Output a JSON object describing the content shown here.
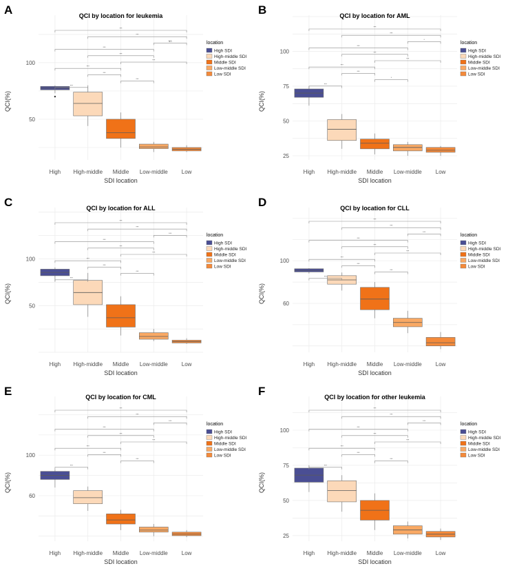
{
  "figure": {
    "panels": [
      "A",
      "B",
      "C",
      "D",
      "E",
      "F"
    ]
  },
  "legend": {
    "title": "location",
    "entries": [
      {
        "label": "High SDI",
        "color": "#4a4e94"
      },
      {
        "label": "High-middle SDI",
        "color": "#fcd9b9"
      },
      {
        "label": "Middle SDI",
        "color": "#f07218"
      },
      {
        "label": "Low-middle SDI",
        "color": "#f9a964"
      },
      {
        "label": "Low SDI",
        "color": "#f48a3a"
      }
    ]
  },
  "chart_data": [
    {
      "panel": "A",
      "type": "box",
      "title": "QCI by location for leukemia",
      "xlabel": "SDI location",
      "ylabel": "QCI(%)",
      "categories": [
        "High",
        "High-middle",
        "Middle",
        "Low-middle",
        "Low"
      ],
      "yticks": [
        50,
        100
      ],
      "ylim": [
        14,
        142
      ],
      "boxes": [
        {
          "category": "High",
          "whisker_low": 73,
          "q1": 76,
          "median": 77.5,
          "q3": 79,
          "whisker_high": 80,
          "outliers": [
            70
          ]
        },
        {
          "category": "High-middle",
          "whisker_low": 44,
          "q1": 53,
          "median": 64,
          "q3": 74,
          "whisker_high": 80,
          "outliers": []
        },
        {
          "category": "Middle",
          "whisker_low": 25,
          "q1": 33,
          "median": 38,
          "q3": 50,
          "whisker_high": 56,
          "outliers": []
        },
        {
          "category": "Low-middle",
          "whisker_low": 21,
          "q1": 24,
          "median": 25.5,
          "q3": 28,
          "whisker_high": 30,
          "outliers": []
        },
        {
          "category": "Low",
          "whisker_low": 21,
          "q1": 22,
          "median": 23.5,
          "q3": 25,
          "whisker_high": 27,
          "outliers": []
        }
      ],
      "significance": [
        {
          "from": "High",
          "to": "High-middle",
          "label": "***"
        },
        {
          "from": "High",
          "to": "Middle",
          "label": "***"
        },
        {
          "from": "High",
          "to": "Low-middle",
          "label": "***"
        },
        {
          "from": "High",
          "to": "Low",
          "label": "***"
        },
        {
          "from": "High-middle",
          "to": "Middle",
          "label": "***"
        },
        {
          "from": "High-middle",
          "to": "Low-middle",
          "label": "***"
        },
        {
          "from": "High-middle",
          "to": "Low",
          "label": "***"
        },
        {
          "from": "Middle",
          "to": "Low-middle",
          "label": "***"
        },
        {
          "from": "Middle",
          "to": "Low",
          "label": "***"
        },
        {
          "from": "Low-middle",
          "to": "Low",
          "label": "NS"
        }
      ]
    },
    {
      "panel": "B",
      "type": "box",
      "title": "QCI by location for AML",
      "xlabel": "SDI location",
      "ylabel": "QCI(%)",
      "categories": [
        "High",
        "High-middle",
        "Middle",
        "Low-middle",
        "Low"
      ],
      "yticks": [
        25,
        50,
        75,
        100
      ],
      "ylim": [
        22,
        126
      ],
      "boxes": [
        {
          "category": "High",
          "whisker_low": 61,
          "q1": 67,
          "median": 70,
          "q3": 73,
          "whisker_high": 75,
          "outliers": []
        },
        {
          "category": "High-middle",
          "whisker_low": 30,
          "q1": 36,
          "median": 44,
          "q3": 51,
          "whisker_high": 55,
          "outliers": []
        },
        {
          "category": "Middle",
          "whisker_low": 26,
          "q1": 30,
          "median": 34,
          "q3": 37,
          "whisker_high": 41,
          "outliers": []
        },
        {
          "category": "Low-middle",
          "whisker_low": 25,
          "q1": 28.5,
          "median": 31,
          "q3": 33,
          "whisker_high": 35,
          "outliers": []
        },
        {
          "category": "Low",
          "whisker_low": 25,
          "q1": 27.5,
          "median": 29,
          "q3": 31,
          "whisker_high": 32,
          "outliers": []
        }
      ],
      "significance": [
        {
          "from": "High",
          "to": "High-middle",
          "label": "***"
        },
        {
          "from": "High",
          "to": "Middle",
          "label": "***"
        },
        {
          "from": "High",
          "to": "Low-middle",
          "label": "***"
        },
        {
          "from": "High",
          "to": "Low",
          "label": "***"
        },
        {
          "from": "High-middle",
          "to": "Middle",
          "label": "***"
        },
        {
          "from": "High-middle",
          "to": "Low-middle",
          "label": "***"
        },
        {
          "from": "High-middle",
          "to": "Low",
          "label": "***"
        },
        {
          "from": "Middle",
          "to": "Low-middle",
          "label": "*"
        },
        {
          "from": "Middle",
          "to": "Low",
          "label": "***"
        },
        {
          "from": "Low-middle",
          "to": "Low",
          "label": "*"
        }
      ]
    },
    {
      "panel": "C",
      "type": "box",
      "title": "QCI by location for ALL",
      "xlabel": "SDI location",
      "ylabel": "QCI(%)",
      "categories": [
        "High",
        "High-middle",
        "Middle",
        "Low-middle",
        "Low"
      ],
      "yticks": [
        50,
        100
      ],
      "ylim": [
        0,
        155
      ],
      "boxes": [
        {
          "category": "High",
          "whisker_low": 76,
          "q1": 82,
          "median": 85.5,
          "q3": 89,
          "whisker_high": 91,
          "outliers": []
        },
        {
          "category": "High-middle",
          "whisker_low": 38,
          "q1": 51,
          "median": 64,
          "q3": 77,
          "whisker_high": 85,
          "outliers": []
        },
        {
          "category": "Middle",
          "whisker_low": 18,
          "q1": 27,
          "median": 37,
          "q3": 51,
          "whisker_high": 60,
          "outliers": []
        },
        {
          "category": "Low-middle",
          "whisker_low": 12,
          "q1": 14,
          "median": 17,
          "q3": 21,
          "whisker_high": 25,
          "outliers": []
        },
        {
          "category": "Low",
          "whisker_low": 9,
          "q1": 10,
          "median": 11.5,
          "q3": 13,
          "whisker_high": 15,
          "outliers": []
        }
      ],
      "significance": [
        {
          "from": "High",
          "to": "High-middle",
          "label": "***"
        },
        {
          "from": "High",
          "to": "Middle",
          "label": "***"
        },
        {
          "from": "High",
          "to": "Low-middle",
          "label": "***"
        },
        {
          "from": "High",
          "to": "Low",
          "label": "***"
        },
        {
          "from": "High-middle",
          "to": "Middle",
          "label": "***"
        },
        {
          "from": "High-middle",
          "to": "Low-middle",
          "label": "***"
        },
        {
          "from": "High-middle",
          "to": "Low",
          "label": "***"
        },
        {
          "from": "Middle",
          "to": "Low-middle",
          "label": "***"
        },
        {
          "from": "Middle",
          "to": "Low",
          "label": "***"
        },
        {
          "from": "Low-middle",
          "to": "Low",
          "label": "***"
        }
      ]
    },
    {
      "panel": "D",
      "type": "box",
      "title": "QCI by location for CLL",
      "xlabel": "SDI location",
      "ylabel": "QCI(%)",
      "categories": [
        "High",
        "High-middle",
        "Middle",
        "Low-middle",
        "Low"
      ],
      "yticks": [
        60,
        100
      ],
      "ylim": [
        14,
        150
      ],
      "boxes": [
        {
          "category": "High",
          "whisker_low": 88,
          "q1": 89.5,
          "median": 91,
          "q3": 92.5,
          "whisker_high": 93,
          "outliers": []
        },
        {
          "category": "High-middle",
          "whisker_low": 72,
          "q1": 78,
          "median": 82,
          "q3": 86,
          "whisker_high": 89,
          "outliers": []
        },
        {
          "category": "Middle",
          "whisker_low": 46,
          "q1": 54,
          "median": 64,
          "q3": 75,
          "whisker_high": 80,
          "outliers": []
        },
        {
          "category": "Low-middle",
          "whisker_low": 32,
          "q1": 38,
          "median": 42,
          "q3": 46,
          "whisker_high": 53,
          "outliers": []
        },
        {
          "category": "Low",
          "whisker_low": 17,
          "q1": 20,
          "median": 23,
          "q3": 28,
          "whisker_high": 33,
          "outliers": []
        }
      ],
      "significance": [
        {
          "from": "High",
          "to": "High-middle",
          "label": "***"
        },
        {
          "from": "High",
          "to": "Middle",
          "label": "***"
        },
        {
          "from": "High",
          "to": "Low-middle",
          "label": "***"
        },
        {
          "from": "High",
          "to": "Low",
          "label": "***"
        },
        {
          "from": "High-middle",
          "to": "Middle",
          "label": "***"
        },
        {
          "from": "High-middle",
          "to": "Low-middle",
          "label": "***"
        },
        {
          "from": "High-middle",
          "to": "Low",
          "label": "***"
        },
        {
          "from": "Middle",
          "to": "Low-middle",
          "label": "***"
        },
        {
          "from": "Middle",
          "to": "Low",
          "label": "***"
        },
        {
          "from": "Low-middle",
          "to": "Low",
          "label": "***"
        }
      ]
    },
    {
      "panel": "E",
      "type": "box",
      "title": "QCI by location for CML",
      "xlabel": "SDI location",
      "ylabel": "QCI(%)",
      "categories": [
        "High",
        "High-middle",
        "Middle",
        "Low-middle",
        "Low"
      ],
      "yticks": [
        60,
        100
      ],
      "ylim": [
        15,
        158
      ],
      "boxes": [
        {
          "category": "High",
          "whisker_low": 68,
          "q1": 76,
          "median": 80,
          "q3": 84,
          "whisker_high": 86,
          "outliers": []
        },
        {
          "category": "High-middle",
          "whisker_low": 45,
          "q1": 52,
          "median": 58,
          "q3": 65,
          "whisker_high": 69,
          "outliers": []
        },
        {
          "category": "Middle",
          "whisker_low": 26,
          "q1": 32,
          "median": 36,
          "q3": 42,
          "whisker_high": 46,
          "outliers": []
        },
        {
          "category": "Low-middle",
          "whisker_low": 20,
          "q1": 24,
          "median": 26,
          "q3": 29,
          "whisker_high": 32,
          "outliers": []
        },
        {
          "category": "Low",
          "whisker_low": 19,
          "q1": 20.5,
          "median": 22,
          "q3": 24,
          "whisker_high": 26,
          "outliers": []
        }
      ],
      "significance": [
        {
          "from": "High",
          "to": "High-middle",
          "label": "***"
        },
        {
          "from": "High",
          "to": "Middle",
          "label": "***"
        },
        {
          "from": "High",
          "to": "Low-middle",
          "label": "***"
        },
        {
          "from": "High",
          "to": "Low",
          "label": "***"
        },
        {
          "from": "High-middle",
          "to": "Middle",
          "label": "***"
        },
        {
          "from": "High-middle",
          "to": "Low-middle",
          "label": "***"
        },
        {
          "from": "High-middle",
          "to": "Low",
          "label": "***"
        },
        {
          "from": "Middle",
          "to": "Low-middle",
          "label": "***"
        },
        {
          "from": "Middle",
          "to": "Low",
          "label": "***"
        },
        {
          "from": "Low-middle",
          "to": "Low",
          "label": "***"
        }
      ]
    },
    {
      "panel": "F",
      "type": "box",
      "title": "QCI by location for other leukemia",
      "xlabel": "SDI location",
      "ylabel": "QCI(%)",
      "categories": [
        "High",
        "High-middle",
        "Middle",
        "Low-middle",
        "Low"
      ],
      "yticks": [
        25,
        50,
        75,
        100
      ],
      "ylim": [
        21,
        124
      ],
      "boxes": [
        {
          "category": "High",
          "whisker_low": 56,
          "q1": 63,
          "median": 68,
          "q3": 73,
          "whisker_high": 75,
          "outliers": []
        },
        {
          "category": "High-middle",
          "whisker_low": 42,
          "q1": 49,
          "median": 57,
          "q3": 64,
          "whisker_high": 68,
          "outliers": []
        },
        {
          "category": "Middle",
          "whisker_low": 29,
          "q1": 36,
          "median": 43,
          "q3": 50,
          "whisker_high": 55,
          "outliers": []
        },
        {
          "category": "Low-middle",
          "whisker_low": 23,
          "q1": 26,
          "median": 29,
          "q3": 32,
          "whisker_high": 35,
          "outliers": []
        },
        {
          "category": "Low",
          "whisker_low": 22,
          "q1": 24,
          "median": 26,
          "q3": 28,
          "whisker_high": 30,
          "outliers": []
        }
      ],
      "significance": [
        {
          "from": "High",
          "to": "High-middle",
          "label": "***"
        },
        {
          "from": "High",
          "to": "Middle",
          "label": "***"
        },
        {
          "from": "High",
          "to": "Low-middle",
          "label": "***"
        },
        {
          "from": "High",
          "to": "Low",
          "label": "***"
        },
        {
          "from": "High-middle",
          "to": "Middle",
          "label": "***"
        },
        {
          "from": "High-middle",
          "to": "Low-middle",
          "label": "***"
        },
        {
          "from": "High-middle",
          "to": "Low",
          "label": "***"
        },
        {
          "from": "Middle",
          "to": "Low-middle",
          "label": "***"
        },
        {
          "from": "Middle",
          "to": "Low",
          "label": "***"
        },
        {
          "from": "Low-middle",
          "to": "Low",
          "label": "***"
        }
      ]
    }
  ]
}
